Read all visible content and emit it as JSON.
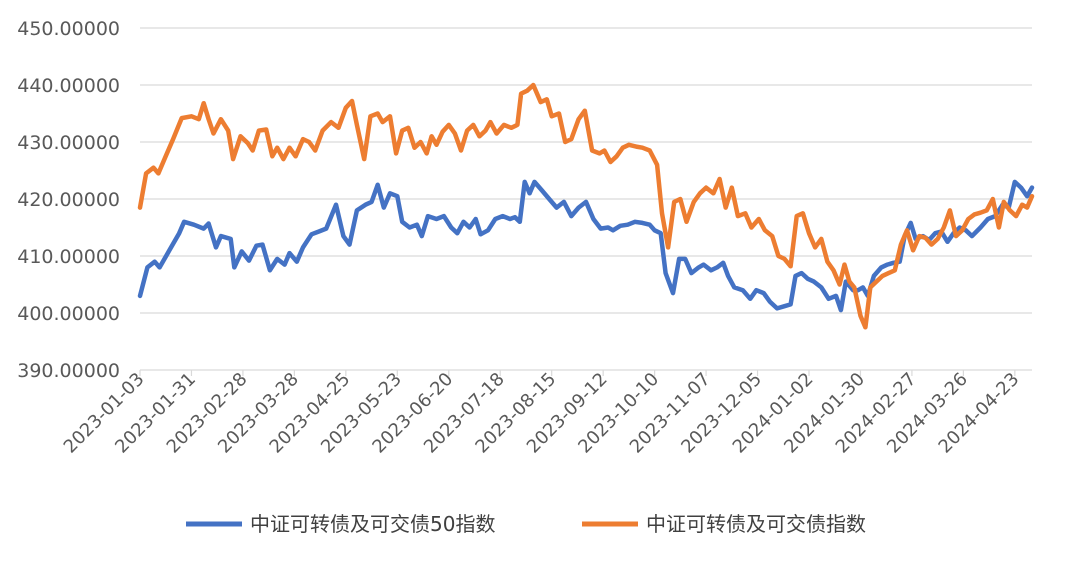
{
  "chart_data": {
    "type": "line",
    "title": "",
    "xlabel": "",
    "ylabel": "",
    "ylim": [
      390,
      450
    ],
    "y_ticks": [
      "390.00000",
      "400.00000",
      "410.00000",
      "420.00000",
      "430.00000",
      "440.00000",
      "450.00000"
    ],
    "x_ticks": [
      "2023-01-03",
      "2023-01-31",
      "2023-02-28",
      "2023-03-28",
      "2023-04-25",
      "2023-05-23",
      "2023-06-20",
      "2023-07-18",
      "2023-08-15",
      "2023-09-12",
      "2023-10-10",
      "2023-11-07",
      "2023-12-05",
      "2024-01-02",
      "2024-01-30",
      "2024-02-27",
      "2024-03-26",
      "2024-04-23"
    ],
    "gridlines": "horizontal",
    "legend_position": "bottom",
    "series": [
      {
        "name": "中证可转债及可交债50指数",
        "color": "#4472C4",
        "points": [
          [
            0,
            403
          ],
          [
            0.6,
            408
          ],
          [
            1.2,
            409
          ],
          [
            1.6,
            408
          ],
          [
            2.4,
            411
          ],
          [
            3.2,
            414
          ],
          [
            3.6,
            416
          ],
          [
            4.4,
            415.5
          ],
          [
            5.2,
            414.8
          ],
          [
            5.6,
            415.7
          ],
          [
            6.2,
            411.5
          ],
          [
            6.6,
            413.5
          ],
          [
            7.4,
            413
          ],
          [
            7.7,
            408
          ],
          [
            8.3,
            410.8
          ],
          [
            8.9,
            409.2
          ],
          [
            9.5,
            411.8
          ],
          [
            10,
            412
          ],
          [
            10.6,
            407.5
          ],
          [
            11.2,
            409.5
          ],
          [
            11.8,
            408.5
          ],
          [
            12.2,
            410.5
          ],
          [
            12.8,
            409
          ],
          [
            13.3,
            411.5
          ],
          [
            14,
            413.8
          ],
          [
            14.6,
            414.3
          ],
          [
            15.2,
            414.8
          ],
          [
            16,
            419
          ],
          [
            16.6,
            413.5
          ],
          [
            17.1,
            412
          ],
          [
            17.7,
            418
          ],
          [
            18.4,
            419
          ],
          [
            18.9,
            419.5
          ],
          [
            19.4,
            422.5
          ],
          [
            19.9,
            418.5
          ],
          [
            20.4,
            421
          ],
          [
            21,
            420.5
          ],
          [
            21.4,
            416
          ],
          [
            22,
            415
          ],
          [
            22.6,
            415.5
          ],
          [
            23,
            413.5
          ],
          [
            23.5,
            417
          ],
          [
            24.2,
            416.5
          ],
          [
            24.8,
            417
          ],
          [
            25.4,
            415
          ],
          [
            25.9,
            414
          ],
          [
            26.4,
            416
          ],
          [
            26.9,
            415
          ],
          [
            27.4,
            416.5
          ],
          [
            27.8,
            413.8
          ],
          [
            28.4,
            414.5
          ],
          [
            29,
            416.5
          ],
          [
            29.6,
            417
          ],
          [
            30.2,
            416.5
          ],
          [
            30.6,
            416.8
          ],
          [
            31,
            416
          ],
          [
            31.4,
            423
          ],
          [
            31.8,
            421
          ],
          [
            32.2,
            423
          ],
          [
            32.8,
            421.5
          ],
          [
            33.4,
            420
          ],
          [
            34,
            418.5
          ],
          [
            34.6,
            419.5
          ],
          [
            35.2,
            417
          ],
          [
            35.8,
            418.5
          ],
          [
            36.4,
            419.5
          ],
          [
            37,
            416.5
          ],
          [
            37.6,
            414.8
          ],
          [
            38.2,
            415
          ],
          [
            38.6,
            414.5
          ],
          [
            39.2,
            415.3
          ],
          [
            39.8,
            415.5
          ],
          [
            40.4,
            416
          ],
          [
            41,
            415.8
          ],
          [
            41.6,
            415.5
          ],
          [
            42,
            414.5
          ],
          [
            42.5,
            414
          ],
          [
            42.9,
            407
          ],
          [
            43.5,
            403.5
          ],
          [
            44,
            409.5
          ],
          [
            44.5,
            409.5
          ],
          [
            45,
            407
          ],
          [
            45.6,
            408
          ],
          [
            46,
            408.5
          ],
          [
            46.6,
            407.5
          ],
          [
            47.1,
            408
          ],
          [
            47.6,
            408.8
          ],
          [
            48,
            406.5
          ],
          [
            48.5,
            404.5
          ],
          [
            49.2,
            404
          ],
          [
            49.8,
            402.5
          ],
          [
            50.3,
            404
          ],
          [
            50.9,
            403.5
          ],
          [
            51.4,
            402
          ],
          [
            52,
            400.8
          ],
          [
            52.6,
            401.2
          ],
          [
            53.1,
            401.5
          ],
          [
            53.5,
            406.5
          ],
          [
            54,
            407
          ],
          [
            54.5,
            406
          ],
          [
            55,
            405.5
          ],
          [
            55.6,
            404.5
          ],
          [
            56.2,
            402.5
          ],
          [
            56.8,
            403
          ],
          [
            57.2,
            400.5
          ],
          [
            57.6,
            405.5
          ],
          [
            58.2,
            404
          ],
          [
            58.6,
            404
          ],
          [
            59,
            404.5
          ],
          [
            59.4,
            403
          ],
          [
            59.9,
            406.5
          ],
          [
            60.5,
            408
          ],
          [
            61,
            408.5
          ],
          [
            61.5,
            408.8
          ],
          [
            62,
            409
          ],
          [
            62.4,
            413.5
          ],
          [
            62.9,
            415.8
          ],
          [
            63.3,
            413
          ],
          [
            63.9,
            413.5
          ],
          [
            64.4,
            412.8
          ],
          [
            64.9,
            414
          ],
          [
            65.4,
            414.3
          ],
          [
            65.9,
            412.5
          ],
          [
            66.4,
            414
          ],
          [
            66.9,
            415
          ],
          [
            67.4,
            414.5
          ],
          [
            67.9,
            413.5
          ],
          [
            68.6,
            415
          ],
          [
            69.2,
            416.5
          ],
          [
            69.8,
            417
          ],
          [
            70.4,
            419
          ],
          [
            70.9,
            418.5
          ],
          [
            71.4,
            423
          ],
          [
            71.9,
            422
          ],
          [
            72.4,
            420.5
          ],
          [
            72.8,
            422
          ]
        ]
      },
      {
        "name": "中证可转债及可交债指数",
        "color": "#ED7D31",
        "points": [
          [
            0,
            418.5
          ],
          [
            0.5,
            424.5
          ],
          [
            1.1,
            425.5
          ],
          [
            1.5,
            424.5
          ],
          [
            2.1,
            427.5
          ],
          [
            2.7,
            430.5
          ],
          [
            3.4,
            434.2
          ],
          [
            4.2,
            434.5
          ],
          [
            4.8,
            434
          ],
          [
            5.2,
            436.8
          ],
          [
            5.6,
            434
          ],
          [
            6,
            431.5
          ],
          [
            6.6,
            434
          ],
          [
            7.2,
            432
          ],
          [
            7.6,
            427
          ],
          [
            8.2,
            431
          ],
          [
            8.8,
            429.8
          ],
          [
            9.2,
            428.5
          ],
          [
            9.7,
            432
          ],
          [
            10.3,
            432.2
          ],
          [
            10.8,
            427.5
          ],
          [
            11.2,
            429
          ],
          [
            11.7,
            427
          ],
          [
            12.2,
            429
          ],
          [
            12.7,
            427.5
          ],
          [
            13.3,
            430.5
          ],
          [
            13.8,
            430
          ],
          [
            14.3,
            428.5
          ],
          [
            14.9,
            432
          ],
          [
            15.6,
            433.5
          ],
          [
            16.2,
            432.5
          ],
          [
            16.8,
            436
          ],
          [
            17.3,
            437.2
          ],
          [
            17.7,
            433
          ],
          [
            18.3,
            427
          ],
          [
            18.8,
            434.5
          ],
          [
            19.4,
            435
          ],
          [
            19.8,
            433.5
          ],
          [
            20.4,
            434.5
          ],
          [
            20.9,
            428
          ],
          [
            21.4,
            432
          ],
          [
            21.9,
            432.5
          ],
          [
            22.4,
            429
          ],
          [
            22.9,
            430
          ],
          [
            23.4,
            428
          ],
          [
            23.8,
            431
          ],
          [
            24.2,
            429.5
          ],
          [
            24.7,
            431.8
          ],
          [
            25.2,
            433
          ],
          [
            25.7,
            431.5
          ],
          [
            26.2,
            428.5
          ],
          [
            26.7,
            432
          ],
          [
            27.2,
            433
          ],
          [
            27.7,
            431
          ],
          [
            28.2,
            432
          ],
          [
            28.6,
            433.5
          ],
          [
            29.1,
            431.5
          ],
          [
            29.7,
            433
          ],
          [
            30.3,
            432.5
          ],
          [
            30.8,
            433
          ],
          [
            31.1,
            438.5
          ],
          [
            31.6,
            439
          ],
          [
            32.1,
            440
          ],
          [
            32.7,
            437
          ],
          [
            33.2,
            437.5
          ],
          [
            33.6,
            434.5
          ],
          [
            34.2,
            435
          ],
          [
            34.7,
            430
          ],
          [
            35.2,
            430.5
          ],
          [
            35.8,
            434
          ],
          [
            36.3,
            435.5
          ],
          [
            36.9,
            428.5
          ],
          [
            37.5,
            428
          ],
          [
            37.9,
            428.5
          ],
          [
            38.4,
            426.5
          ],
          [
            38.9,
            427.5
          ],
          [
            39.4,
            429
          ],
          [
            39.9,
            429.5
          ],
          [
            40.5,
            429.2
          ],
          [
            41,
            429
          ],
          [
            41.6,
            428.5
          ],
          [
            42.2,
            426
          ],
          [
            42.6,
            417.5
          ],
          [
            43.1,
            411.5
          ],
          [
            43.6,
            419.5
          ],
          [
            44.1,
            420
          ],
          [
            44.6,
            416
          ],
          [
            45.2,
            419.5
          ],
          [
            45.7,
            421
          ],
          [
            46.2,
            422
          ],
          [
            46.8,
            421
          ],
          [
            47.3,
            423.5
          ],
          [
            47.8,
            418.5
          ],
          [
            48.3,
            422
          ],
          [
            48.8,
            417
          ],
          [
            49.4,
            417.5
          ],
          [
            49.9,
            415
          ],
          [
            50.5,
            416.5
          ],
          [
            51,
            414.5
          ],
          [
            51.6,
            413.5
          ],
          [
            52.1,
            410
          ],
          [
            52.6,
            409.5
          ],
          [
            53.1,
            408.2
          ],
          [
            53.6,
            417
          ],
          [
            54.1,
            417.5
          ],
          [
            54.6,
            414
          ],
          [
            55.1,
            411.5
          ],
          [
            55.6,
            413
          ],
          [
            56.1,
            409
          ],
          [
            56.6,
            407.5
          ],
          [
            57.1,
            405
          ],
          [
            57.5,
            408.5
          ],
          [
            57.9,
            405.5
          ],
          [
            58.3,
            404.5
          ],
          [
            58.8,
            399.5
          ],
          [
            59.2,
            397.5
          ],
          [
            59.6,
            404.5
          ],
          [
            60.1,
            405.5
          ],
          [
            60.6,
            406.5
          ],
          [
            61.1,
            407
          ],
          [
            61.6,
            407.5
          ],
          [
            62.1,
            412
          ],
          [
            62.6,
            414.5
          ],
          [
            63.1,
            411
          ],
          [
            63.6,
            413.5
          ],
          [
            64.1,
            413.2
          ],
          [
            64.6,
            412
          ],
          [
            65.1,
            413
          ],
          [
            65.6,
            415
          ],
          [
            66.1,
            418
          ],
          [
            66.6,
            413.5
          ],
          [
            67.1,
            414.5
          ],
          [
            67.6,
            416.5
          ],
          [
            68.1,
            417.3
          ],
          [
            68.6,
            417.6
          ],
          [
            69.1,
            418
          ],
          [
            69.6,
            420
          ],
          [
            70.1,
            415
          ],
          [
            70.5,
            419.5
          ],
          [
            71,
            418
          ],
          [
            71.5,
            417
          ],
          [
            72,
            419
          ],
          [
            72.4,
            418.5
          ],
          [
            72.8,
            420.5
          ]
        ]
      }
    ],
    "x_tick_positions": [
      0,
      4.2,
      8.4,
      12.6,
      16.8,
      21,
      25.2,
      29.4,
      33.6,
      37.8,
      42,
      46.2,
      50.4,
      54.6,
      58.8,
      63,
      67.2,
      71.4
    ]
  }
}
